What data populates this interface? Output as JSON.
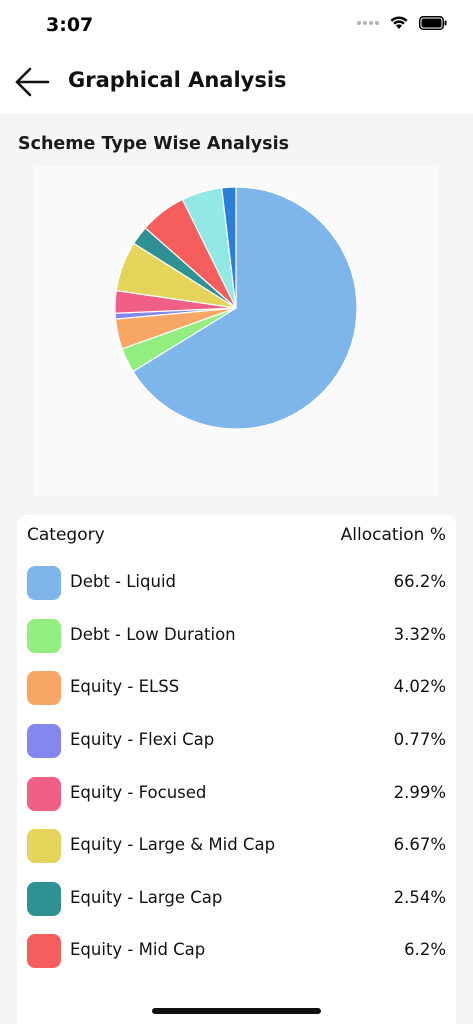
{
  "status_bar": {
    "time": "3:07",
    "icons": [
      "signal-icon",
      "wifi-icon",
      "battery-icon"
    ]
  },
  "header": {
    "title": "Graphical Analysis",
    "back_icon": "arrow-left-icon"
  },
  "section": {
    "title": "Scheme Type Wise Analysis"
  },
  "chart_data": {
    "type": "pie",
    "title": "",
    "slices": [
      {
        "label": "Debt - Liquid",
        "value": 66.2,
        "color": "#7eb5eb"
      },
      {
        "label": "Debt - Low Duration",
        "value": 3.32,
        "color": "#92ee80"
      },
      {
        "label": "Equity - ELSS",
        "value": 4.02,
        "color": "#f7a763"
      },
      {
        "label": "Equity - Flexi Cap",
        "value": 0.77,
        "color": "#8488ee"
      },
      {
        "label": "Equity - Focused",
        "value": 2.99,
        "color": "#f05f86"
      },
      {
        "label": "Equity - Large & Mid Cap",
        "value": 6.67,
        "color": "#e4d55a"
      },
      {
        "label": "Equity - Large Cap",
        "value": 2.54,
        "color": "#2f9192"
      },
      {
        "label": "Equity - Mid Cap",
        "value": 6.2,
        "color": "#f65e5e"
      },
      {
        "label": "",
        "value": 5.4,
        "color": "#92e9e3"
      },
      {
        "label": "",
        "value": 1.89,
        "color": "#2b7fd8"
      }
    ]
  },
  "table": {
    "header_category": "Category",
    "header_allocation": "Allocation %",
    "rows": [
      {
        "label": "Debt - Liquid",
        "value": "66.2%",
        "color": "#7eb5eb"
      },
      {
        "label": "Debt - Low Duration",
        "value": "3.32%",
        "color": "#92ee80"
      },
      {
        "label": "Equity - ELSS",
        "value": "4.02%",
        "color": "#f7a763"
      },
      {
        "label": "Equity - Flexi Cap",
        "value": "0.77%",
        "color": "#8488ee"
      },
      {
        "label": "Equity - Focused",
        "value": "2.99%",
        "color": "#f05f86"
      },
      {
        "label": "Equity - Large & Mid Cap",
        "value": "6.67%",
        "color": "#e4d55a"
      },
      {
        "label": "Equity - Large Cap",
        "value": "2.54%",
        "color": "#2f9192"
      },
      {
        "label": "Equity - Mid Cap",
        "value": "6.2%",
        "color": "#f65e5e"
      }
    ]
  }
}
